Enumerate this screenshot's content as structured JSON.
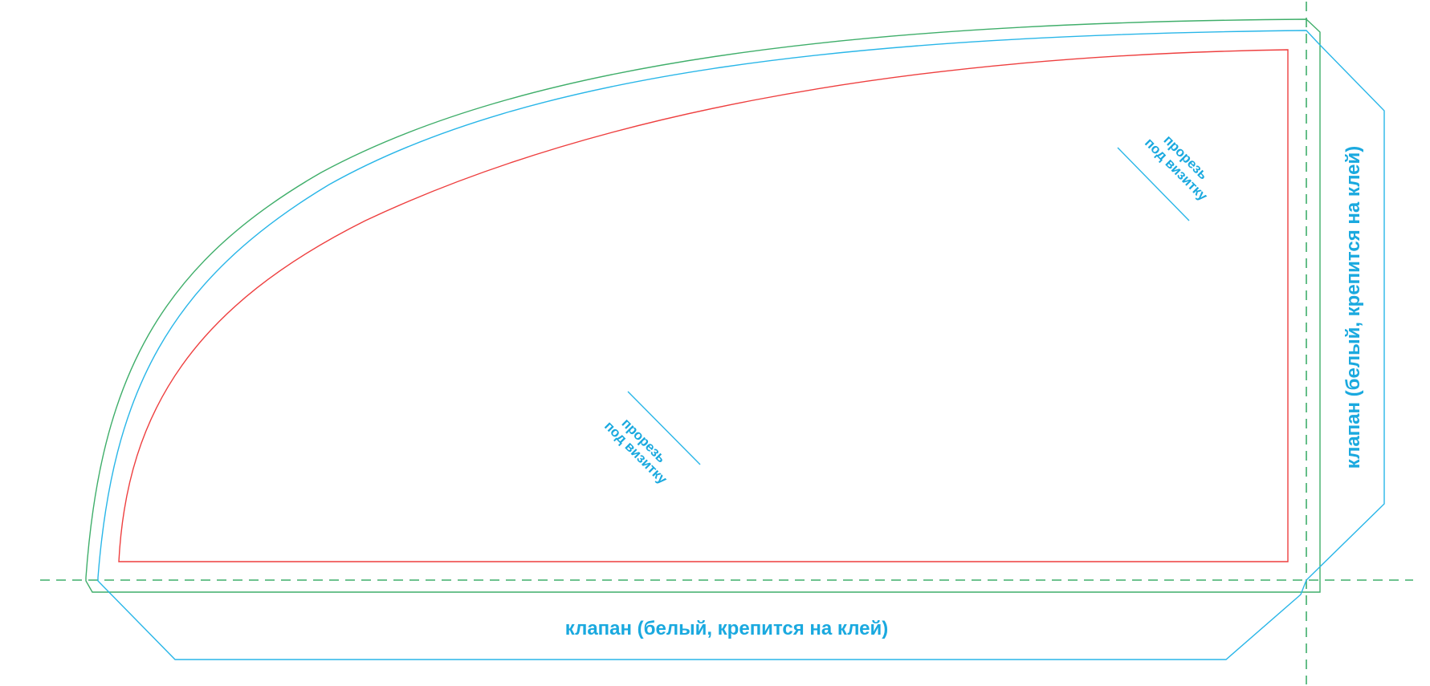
{
  "colors": {
    "green": "#3fae6a",
    "cyan": "#29b6e8",
    "red": "#ee3f3f",
    "text": "#1aa9df",
    "background": "#ffffff"
  },
  "labels": {
    "flap_bottom": "клапан (белый, крепится на клей)",
    "flap_right": "клапан (белый, крепится на клей)",
    "slot_center": {
      "line1": "прорезь",
      "line2": "под визитку"
    },
    "slot_top_right": {
      "line1": "прорезь",
      "line2": "под визитку"
    }
  }
}
